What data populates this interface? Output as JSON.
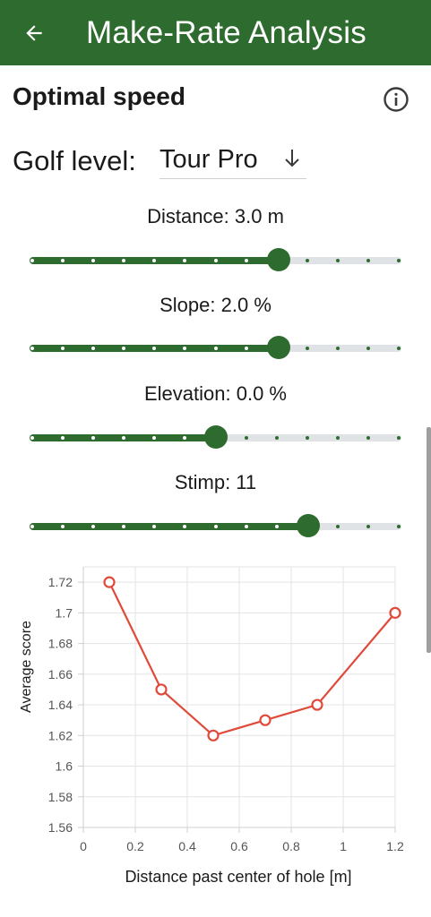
{
  "app": {
    "title": "Make-Rate Analysis",
    "back_icon": "arrow-left-icon",
    "bar_color": "#2e6b2e"
  },
  "section": {
    "title": "Optimal speed",
    "info_icon": "info-icon"
  },
  "golf_level": {
    "label": "Golf level:",
    "value": "Tour Pro",
    "dropdown_icon": "arrow-down-icon"
  },
  "sliders": [
    {
      "label": "Distance: 3.0 m",
      "fraction": 0.67,
      "ticks": 13
    },
    {
      "label": "Slope: 2.0 %",
      "fraction": 0.67,
      "ticks": 13
    },
    {
      "label": "Elevation: 0.0 %",
      "fraction": 0.5,
      "ticks": 13
    },
    {
      "label": "Stimp: 11",
      "fraction": 0.75,
      "ticks": 13
    }
  ],
  "colors": {
    "accent": "#2e6b2e",
    "track_inactive": "#dfe3e6",
    "series": "#e04a3a"
  },
  "chart_data": {
    "type": "line",
    "xlabel": "Distance past center of hole [m]",
    "ylabel": "Average score",
    "xlim": [
      0,
      1.2
    ],
    "ylim": [
      1.56,
      1.73
    ],
    "xticks": [
      "0",
      "0.2",
      "0.4",
      "0.6",
      "0.8",
      "1",
      "1.2"
    ],
    "xtick_values": [
      0,
      0.2,
      0.4,
      0.6,
      0.8,
      1.0,
      1.2
    ],
    "yticks": [
      "1.56",
      "1.58",
      "1.6",
      "1.62",
      "1.64",
      "1.66",
      "1.68",
      "1.7",
      "1.72"
    ],
    "ytick_values": [
      1.56,
      1.58,
      1.6,
      1.62,
      1.64,
      1.66,
      1.68,
      1.7,
      1.72
    ],
    "grid": true,
    "series": [
      {
        "x": [
          0.1,
          0.3,
          0.5,
          0.7,
          0.9,
          1.2
        ],
        "y": [
          1.72,
          1.65,
          1.62,
          1.63,
          1.64,
          1.7
        ]
      }
    ]
  }
}
